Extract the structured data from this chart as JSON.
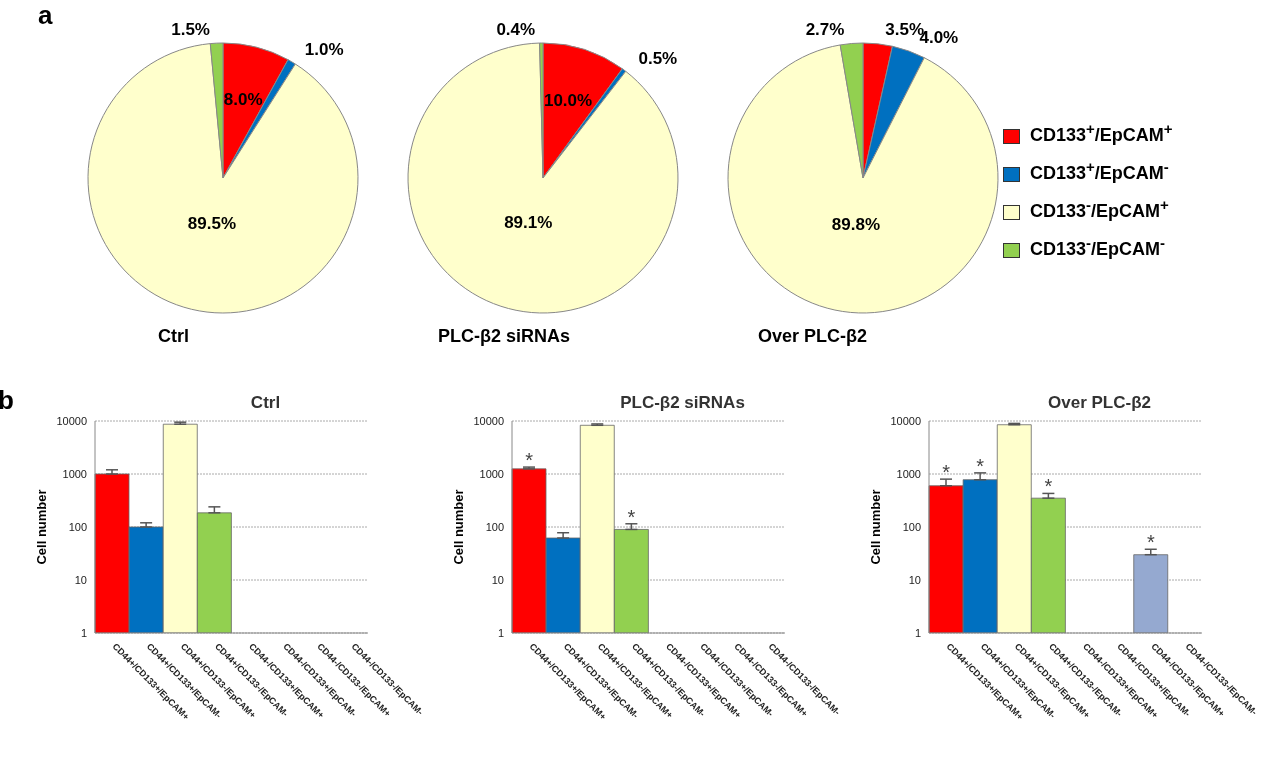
{
  "chart_data": [
    {
      "type": "pie",
      "title": "Ctrl",
      "annotations": [
        "a"
      ],
      "legend": "right",
      "categories": [
        "CD133$^{+}$/EpCAM$^{+}$",
        "CD133$^{+}$/EpCAM$^{-}$",
        "CD133$^{-}$/EpCAM$^{+}$",
        "CD133$^{-}$/EpCAM$^{-}$"
      ],
      "values": [
        8.0,
        1.0,
        89.5,
        1.5
      ],
      "colors": [
        "#ff0000",
        "#0070c0",
        "#ffffcc",
        "#92d050"
      ],
      "value_labels": [
        "8.0%",
        "1.0%",
        "89.5%",
        "1.5%"
      ]
    },
    {
      "type": "pie",
      "title": "PLC-β2 siRNAs",
      "categories": [
        null,
        null,
        null,
        null
      ],
      "values": [
        10.0,
        0.5,
        89.1,
        0.4
      ],
      "colors": [
        "#ff0000",
        "#0070c0",
        "#ffffcc",
        "#92d050"
      ],
      "value_labels": [
        "10.0%",
        "0.5%",
        "89.1%",
        "0.4%"
      ]
    },
    {
      "type": "pie",
      "title": "Over PLC-β2",
      "categories": [
        null,
        null,
        null,
        null
      ],
      "values": [
        3.5,
        4.0,
        89.8,
        2.7
      ],
      "colors": [
        "#ff0000",
        "#0070c0",
        "#ffffcc",
        "#92d050"
      ],
      "value_labels": [
        "3.5%",
        "4.0%",
        "89.8%",
        "2.7%"
      ]
    },
    {
      "type": "bar",
      "title": "Ctrl",
      "ylabel": "Cell number",
      "log": true,
      "grid": "y",
      "ylim": [
        1,
        10000
      ],
      "yticks": [
        1,
        10,
        100,
        1000,
        10000
      ],
      "annotations": [
        "b"
      ],
      "categories": [
        "CD44+/CD133+/EpCAM+",
        "CD44+/CD133+/EpCAM-",
        "CD44+/CD133-/EpCAM+",
        "CD44+/CD133-/EpCAM-",
        "CD44-/CD133+/EpCAM+",
        "CD44-/CD133+/EpCAM-",
        "CD44-/CD133-/EpCAM+",
        "CD44-/CD133-/EpCAM-"
      ],
      "values": [
        1000,
        100,
        8700,
        185,
        null,
        null,
        null,
        null
      ],
      "colors": [
        "#ff0000",
        "#0070c0",
        "#ffffcc",
        "#92d050",
        "#95a9d0",
        "#95a9d0",
        "#95a9d0",
        "#95a9d0"
      ],
      "errors": [
        [
          1000,
          1200
        ],
        [
          100,
          120
        ],
        [
          8700,
          9500
        ],
        [
          185,
          240
        ],
        null,
        null,
        null,
        null
      ]
    },
    {
      "type": "bar",
      "title": "PLC-β2 siRNAs",
      "ylabel": "Cell number",
      "log": true,
      "grid": "y",
      "ylim": [
        1,
        10000
      ],
      "yticks": [
        1,
        10,
        100,
        1000,
        10000
      ],
      "annotations": [
        {
          "text": "*",
          "x": "CD44+/CD133+/EpCAM+",
          "y": 1350
        },
        {
          "text": "*",
          "x": "CD44+/CD133-/EpCAM-",
          "y": 115
        }
      ],
      "categories": [
        "CD44+/CD133+/EpCAM+",
        "CD44+/CD133+/EpCAM-",
        "CD44+/CD133-/EpCAM+",
        "CD44+/CD133-/EpCAM-",
        "CD44-/CD133+/EpCAM+",
        "CD44-/CD133+/EpCAM-",
        "CD44-/CD133-/EpCAM+",
        "CD44-/CD133-/EpCAM-"
      ],
      "values": [
        1250,
        62,
        8300,
        90,
        null,
        null,
        null,
        null
      ],
      "colors": [
        "#ff0000",
        "#0070c0",
        "#ffffcc",
        "#92d050",
        "#95a9d0",
        "#95a9d0",
        "#95a9d0",
        "#95a9d0"
      ],
      "errors": [
        [
          1250,
          1350
        ],
        [
          62,
          78
        ],
        [
          8300,
          8800
        ],
        [
          90,
          115
        ],
        null,
        null,
        null,
        null
      ]
    },
    {
      "type": "bar",
      "title": "Over PLC-β2",
      "ylabel": "Cell number",
      "log": true,
      "grid": "y",
      "ylim": [
        1,
        10000
      ],
      "yticks": [
        1,
        10,
        100,
        1000,
        10000
      ],
      "annotations": [
        {
          "text": "*",
          "x": "CD44+/CD133+/EpCAM+",
          "y": 800
        },
        {
          "text": "*",
          "x": "CD44+/CD133+/EpCAM-",
          "y": 1050
        },
        {
          "text": "*",
          "x": "CD44+/CD133-/EpCAM-",
          "y": 430
        },
        {
          "text": "*",
          "x": "CD44-/CD133-/EpCAM+",
          "y": 38
        }
      ],
      "categories": [
        "CD44+/CD133+/EpCAM+",
        "CD44+/CD133+/EpCAM-",
        "CD44+/CD133-/EpCAM+",
        "CD44+/CD133-/EpCAM-",
        "CD44-/CD133+/EpCAM+",
        "CD44-/CD133+/EpCAM-",
        "CD44-/CD133-/EpCAM+",
        "CD44-/CD133-/EpCAM-"
      ],
      "values": [
        600,
        780,
        8500,
        350,
        null,
        null,
        30,
        null
      ],
      "colors": [
        "#ff0000",
        "#0070c0",
        "#ffffcc",
        "#92d050",
        "#95a9d0",
        "#95a9d0",
        "#95a9d0",
        "#95a9d0"
      ],
      "errors": [
        [
          600,
          800
        ],
        [
          780,
          1050
        ],
        [
          8500,
          9000
        ],
        [
          350,
          430
        ],
        null,
        null,
        [
          30,
          38
        ],
        null
      ]
    }
  ]
}
